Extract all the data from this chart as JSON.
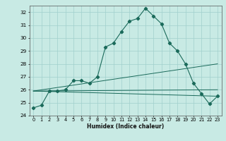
{
  "xlabel": "Humidex (Indice chaleur)",
  "ylabel": "",
  "bg_color": "#c8eae4",
  "grid_color": "#a0d0cc",
  "line_color": "#1a6a5a",
  "xlim": [
    -0.5,
    23.5
  ],
  "ylim": [
    24.0,
    32.5
  ],
  "yticks": [
    24,
    25,
    26,
    27,
    28,
    29,
    30,
    31,
    32
  ],
  "xticks": [
    0,
    1,
    2,
    3,
    4,
    5,
    6,
    7,
    8,
    9,
    10,
    11,
    12,
    13,
    14,
    15,
    16,
    17,
    18,
    19,
    20,
    21,
    22,
    23
  ],
  "series": [
    {
      "x": [
        0,
        1,
        2,
        3,
        4,
        5,
        6,
        7,
        8,
        9,
        10,
        11,
        12,
        13,
        14,
        15,
        16,
        17,
        18,
        19,
        20,
        21,
        22,
        23
      ],
      "y": [
        24.6,
        24.8,
        25.9,
        25.9,
        26.0,
        26.7,
        26.7,
        26.5,
        27.0,
        29.3,
        29.6,
        30.5,
        31.3,
        31.5,
        32.3,
        31.7,
        31.1,
        29.6,
        29.0,
        28.0,
        26.5,
        25.7,
        24.9,
        25.5
      ]
    },
    {
      "x": [
        0,
        23
      ],
      "y": [
        25.9,
        28.0
      ]
    },
    {
      "x": [
        0,
        23
      ],
      "y": [
        25.9,
        26.0
      ]
    },
    {
      "x": [
        0,
        23
      ],
      "y": [
        25.9,
        25.5
      ]
    }
  ]
}
